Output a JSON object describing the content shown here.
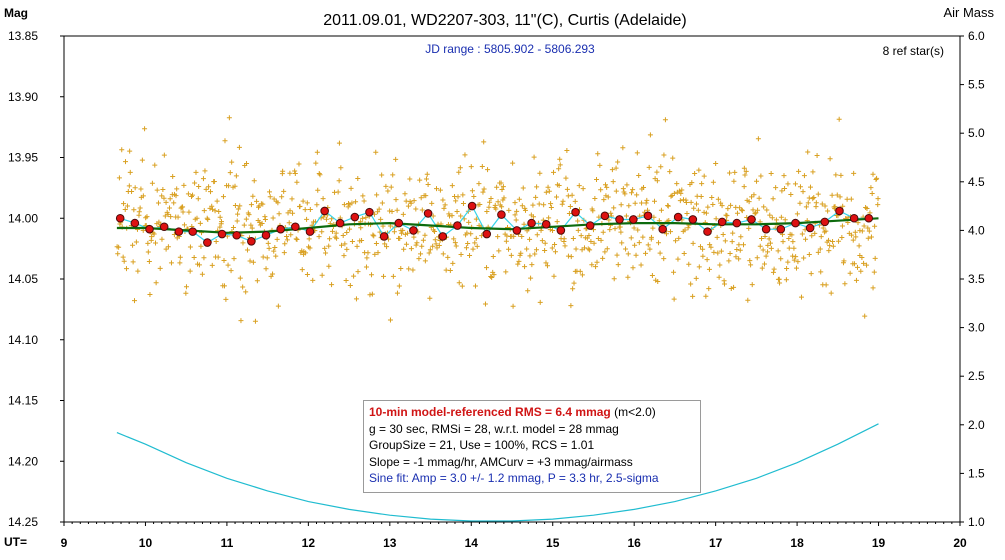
{
  "chart_data": {
    "type": "scatter",
    "title": "2011.09.01, WD2207-303, 11\"(C), Curtis (Adelaide)",
    "ylabel_left": "Mag",
    "ylabel_right": "Air Mass",
    "xlabel": "UT=",
    "jd_range": "JD range : 5805.902 - 5806.293",
    "ref_stars": "8 ref star(s)",
    "xlim": [
      9,
      20
    ],
    "ylim": [
      14.25,
      13.85
    ],
    "y2lim": [
      1.0,
      6.0
    ],
    "x_ticks": [
      "9",
      "10",
      "11",
      "12",
      "13",
      "14",
      "15",
      "16",
      "17",
      "18",
      "19",
      "20"
    ],
    "y_ticks": [
      "13.85",
      "13.90",
      "13.95",
      "14.00",
      "14.05",
      "14.10",
      "14.15",
      "14.20",
      "14.25"
    ],
    "y2_ticks": [
      "6.0",
      "5.5",
      "5.0",
      "4.5",
      "4.0",
      "3.5",
      "3.0",
      "2.5",
      "2.0",
      "1.5",
      "1.0"
    ],
    "grid": false,
    "colors": {
      "raw": "#d9a021",
      "group_fill": "#dd1111",
      "group_edge": "#4a0a0a",
      "model": "#0d6b0d",
      "sine": "#35d3ea",
      "airmass": "#20bcd0"
    },
    "raw_points": {
      "count": 1100,
      "x_range": [
        9.65,
        19.0
      ],
      "center_mag": 14.005,
      "sigma": 0.028
    },
    "series": [
      {
        "role": "group-means",
        "x": [
          9.69,
          9.87,
          10.05,
          10.23,
          10.41,
          10.58,
          10.76,
          10.94,
          11.12,
          11.3,
          11.48,
          11.66,
          11.84,
          12.02,
          12.2,
          12.39,
          12.57,
          12.75,
          12.93,
          13.11,
          13.29,
          13.47,
          13.65,
          13.83,
          14.01,
          14.19,
          14.37,
          14.56,
          14.74,
          14.92,
          15.1,
          15.28,
          15.46,
          15.64,
          15.82,
          15.99,
          16.17,
          16.35,
          16.54,
          16.72,
          16.9,
          17.08,
          17.26,
          17.44,
          17.62,
          17.8,
          17.98,
          18.16,
          18.34,
          18.52,
          18.7,
          18.88
        ],
        "y": [
          14.0,
          14.004,
          14.009,
          14.007,
          14.011,
          14.011,
          14.02,
          14.013,
          14.014,
          14.019,
          14.014,
          14.009,
          14.007,
          14.011,
          13.994,
          14.004,
          13.999,
          13.995,
          14.015,
          14.004,
          14.01,
          13.996,
          14.015,
          14.006,
          13.99,
          14.013,
          13.997,
          14.01,
          14.004,
          14.005,
          14.01,
          13.995,
          14.006,
          13.998,
          14.001,
          14.001,
          13.998,
          14.009,
          13.999,
          14.001,
          14.011,
          14.003,
          14.004,
          14.001,
          14.009,
          14.009,
          14.004,
          14.008,
          14.003,
          13.994,
          14.0,
          14.0
        ]
      },
      {
        "role": "model",
        "x": [
          9.65,
          10.0,
          10.5,
          11.0,
          11.5,
          12.0,
          12.5,
          13.0,
          13.5,
          14.0,
          14.5,
          15.0,
          15.5,
          16.0,
          16.5,
          17.0,
          17.5,
          18.0,
          18.5,
          19.0
        ],
        "y": [
          14.008,
          14.008,
          14.01,
          14.012,
          14.011,
          14.008,
          14.005,
          14.004,
          14.006,
          14.008,
          14.009,
          14.007,
          14.005,
          14.004,
          14.004,
          14.005,
          14.005,
          14.004,
          14.002,
          14.0
        ]
      },
      {
        "role": "airmass",
        "x": [
          9.65,
          10.0,
          10.5,
          11.0,
          11.5,
          12.0,
          12.5,
          13.0,
          13.5,
          14.0,
          14.5,
          15.0,
          15.5,
          16.0,
          16.5,
          17.0,
          17.5,
          18.0,
          18.5,
          19.0
        ],
        "y": [
          1.92,
          1.8,
          1.61,
          1.45,
          1.32,
          1.21,
          1.13,
          1.07,
          1.03,
          1.01,
          1.01,
          1.03,
          1.07,
          1.13,
          1.21,
          1.32,
          1.45,
          1.61,
          1.8,
          2.01
        ]
      }
    ],
    "annotations": {
      "line1": "10-min model-referenced RMS = 6.4 mmag",
      "line1_suffix": "(m<2.0)",
      "line2": "g = 30 sec, RMSi = 28, w.r.t. model = 28 mmag",
      "line3": "GroupSize = 21, Use = 100%, RCS = 1.01",
      "line4": "Slope = -1 mmag/hr, AMCurv = +3 mmag/airmass",
      "line5": "Sine fit: Amp = 3.0 +/- 1.2 mmag, P = 3.3 hr, 2.5-sigma"
    }
  }
}
